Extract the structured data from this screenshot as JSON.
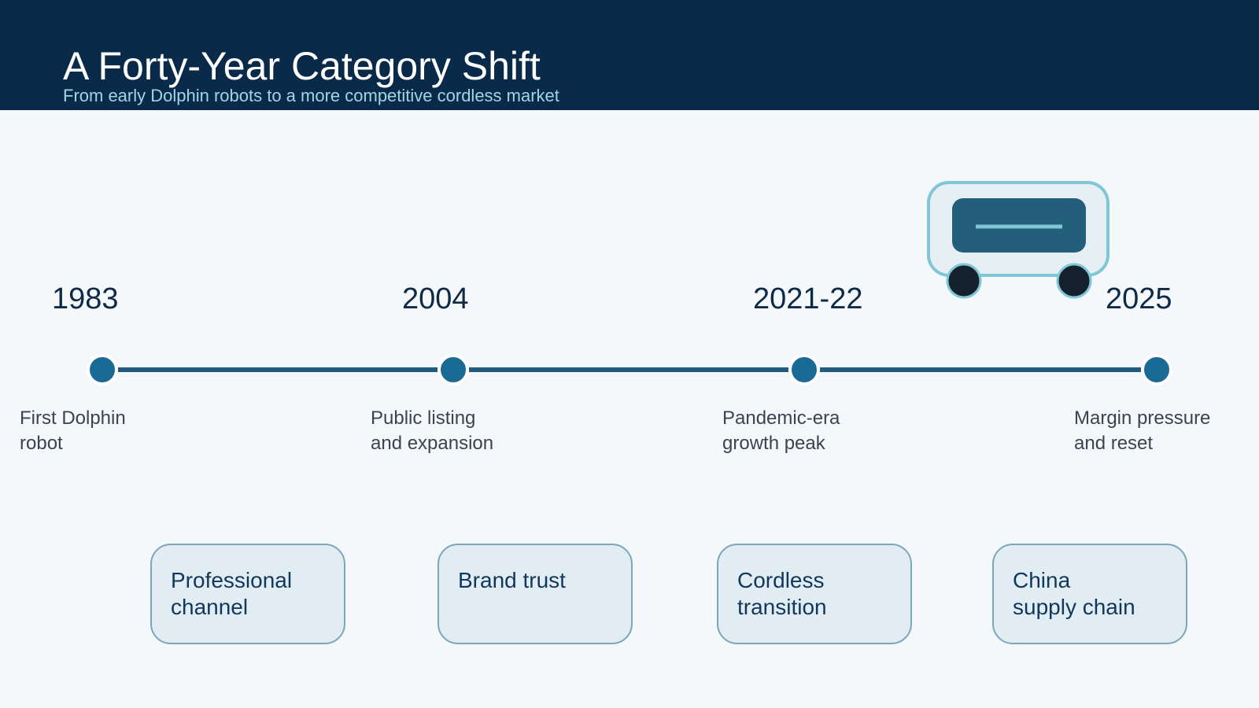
{
  "header": {
    "title": "A Forty-Year Category Shift",
    "subtitle": "From early Dolphin robots to a more competitive cordless market"
  },
  "milestones": [
    {
      "year": "1983",
      "description": "First Dolphin\nrobot"
    },
    {
      "year": "2004",
      "description": "Public listing\nand expansion"
    },
    {
      "year": "2021-22",
      "description": "Pandemic-era\ngrowth peak"
    },
    {
      "year": "2025",
      "description": "Margin pressure\nand reset"
    }
  ],
  "themes": [
    {
      "label": "Professional\nchannel"
    },
    {
      "label": "Brand trust"
    },
    {
      "label": "Cordless\ntransition"
    },
    {
      "label": "China\nsupply chain"
    }
  ],
  "illustration": {
    "icon": "pool-robot-icon"
  },
  "colors": {
    "header_bg": "#0a2a4a",
    "accent": "#1a6a96",
    "line": "#235a7f",
    "card_bg": "#e1edf3",
    "card_border": "#7ca6b9"
  }
}
